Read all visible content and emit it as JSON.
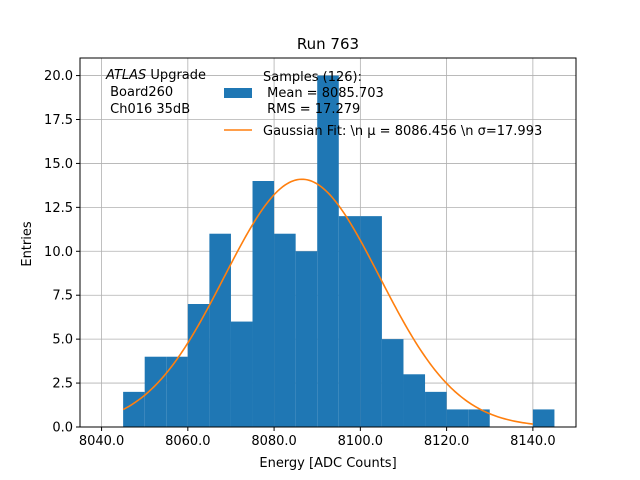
{
  "chart_data": {
    "type": "bar",
    "title": "Run 763",
    "xlabel": "Energy [ADC Counts]",
    "ylabel": "Entries",
    "xlim": [
      8035,
      8150
    ],
    "ylim": [
      0,
      21
    ],
    "grid": true,
    "x_ticks": [
      8040,
      8060,
      8080,
      8100,
      8120,
      8140
    ],
    "x_tick_labels": [
      "8040.0",
      "8060.0",
      "8080.0",
      "8100.0",
      "8120.0",
      "8140.0"
    ],
    "y_ticks": [
      0,
      2.5,
      5,
      7.5,
      10,
      12.5,
      15,
      17.5,
      20
    ],
    "y_tick_labels": [
      "0.0",
      "2.5",
      "5.0",
      "7.5",
      "10.0",
      "12.5",
      "15.0",
      "17.5",
      "20.0"
    ],
    "bin_width": 5,
    "bins": [
      {
        "x0": 8045,
        "count": 2
      },
      {
        "x0": 8050,
        "count": 4
      },
      {
        "x0": 8055,
        "count": 4
      },
      {
        "x0": 8060,
        "count": 7
      },
      {
        "x0": 8065,
        "count": 11
      },
      {
        "x0": 8070,
        "count": 6
      },
      {
        "x0": 8075,
        "count": 14
      },
      {
        "x0": 8080,
        "count": 11
      },
      {
        "x0": 8085,
        "count": 10
      },
      {
        "x0": 8090,
        "count": 20
      },
      {
        "x0": 8095,
        "count": 12
      },
      {
        "x0": 8100,
        "count": 12
      },
      {
        "x0": 8105,
        "count": 5
      },
      {
        "x0": 8110,
        "count": 3
      },
      {
        "x0": 8115,
        "count": 2
      },
      {
        "x0": 8120,
        "count": 1
      },
      {
        "x0": 8125,
        "count": 1
      },
      {
        "x0": 8130,
        "count": 0
      },
      {
        "x0": 8135,
        "count": 0
      },
      {
        "x0": 8140,
        "count": 1
      }
    ],
    "fit": {
      "mu": 8086.456,
      "sigma": 17.993,
      "amplitude": 14.1,
      "x_range": [
        8045,
        8140
      ]
    },
    "colors": {
      "hist": "#1f77b4",
      "fit": "#ff7f0e",
      "grid": "#b0b0b0"
    },
    "legend": {
      "placement": "top-right",
      "samples_lines": [
        "Samples (126):",
        " Mean = 8085.703",
        " RMS = 17.279"
      ],
      "fit_label": "Gaussian Fit: \\n μ = 8086.456 \\n σ=17.993"
    },
    "annotation": {
      "placement": "top-left",
      "lines": [
        "ATLAS Upgrade",
        " Board260",
        " Ch016 35dB"
      ]
    }
  }
}
